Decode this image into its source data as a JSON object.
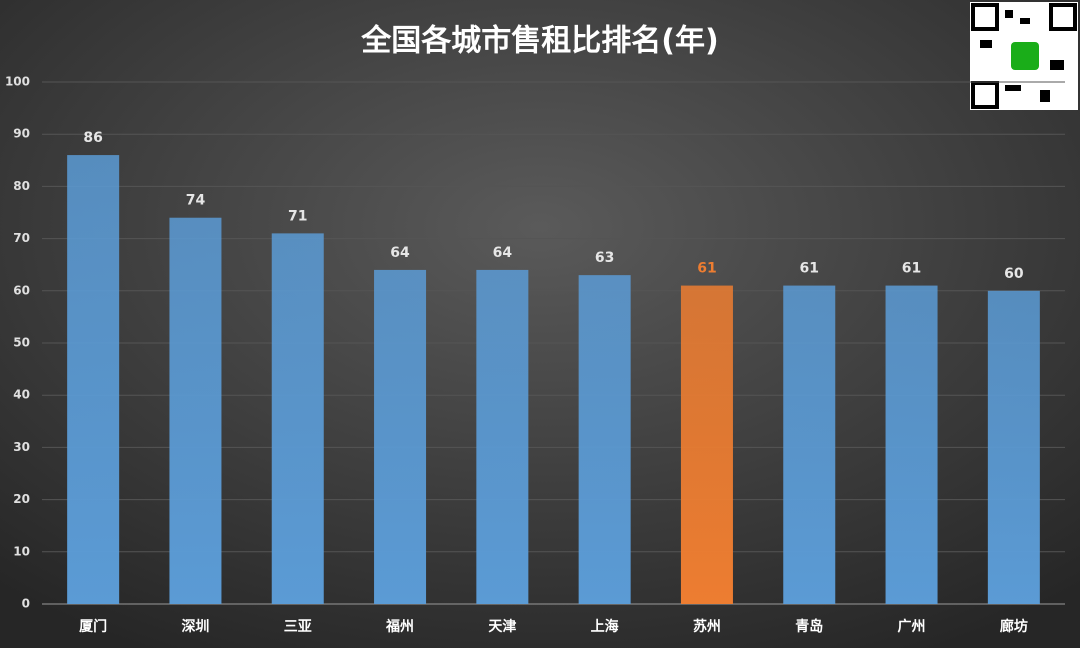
{
  "chart_data": {
    "type": "bar",
    "title": "全国各城市售租比排名(年)",
    "categories": [
      "厦门",
      "深圳",
      "三亚",
      "福州",
      "天津",
      "上海",
      "苏州",
      "青岛",
      "广州",
      "廊坊"
    ],
    "values": [
      86,
      74,
      71,
      64,
      64,
      63,
      61,
      61,
      61,
      60
    ],
    "color": "#5b9bd5",
    "colors": [
      "#5b9bd5",
      "#5b9bd5",
      "#5b9bd5",
      "#5b9bd5",
      "#5b9bd5",
      "#5b9bd5",
      "#ed7d31",
      "#5b9bd5",
      "#5b9bd5",
      "#5b9bd5"
    ],
    "ylim": [
      0,
      100
    ],
    "yticks": [
      0,
      10,
      20,
      30,
      40,
      50,
      60,
      70,
      80,
      90,
      100
    ],
    "grid": true
  }
}
